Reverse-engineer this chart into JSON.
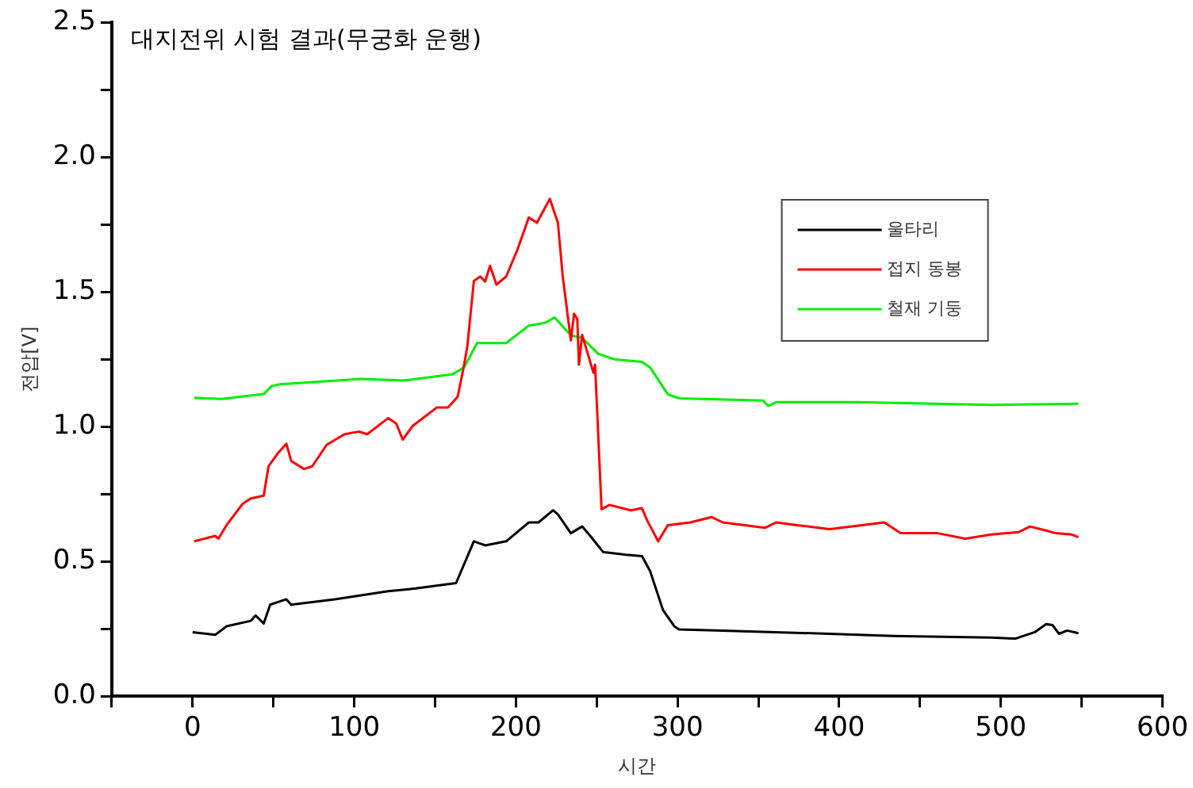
{
  "chart_data": {
    "type": "line",
    "title": "대지전위 시험 결과(무궁화 운행)",
    "xlabel": "시간",
    "ylabel": "전압[V]",
    "xlim": [
      -50,
      600
    ],
    "xticks": [
      {
        "value": -50,
        "label": null
      },
      0,
      {
        "value": 50,
        "label": null
      },
      100,
      {
        "value": 150,
        "label": null
      },
      200,
      {
        "value": 250,
        "label": null
      },
      300,
      {
        "value": 350,
        "label": null
      },
      400,
      {
        "value": 450,
        "label": null
      },
      500,
      {
        "value": 550,
        "label": null
      },
      600
    ],
    "ylim": [
      0,
      2.5
    ],
    "yticks": [
      "0.0",
      {
        "value": 0.25,
        "label": null
      },
      {
        "value": 0.5,
        "label": "0.5"
      },
      {
        "value": 0.75,
        "label": null
      },
      {
        "value": 1,
        "label": "1.0"
      },
      {
        "value": 1.25,
        "label": null
      },
      {
        "value": 1.5,
        "label": "1.5"
      },
      {
        "value": 1.75,
        "label": null
      },
      {
        "value": 2,
        "label": "2.0"
      },
      {
        "value": 2.25,
        "label": null
      },
      {
        "value": 2.5,
        "label": "2.5"
      }
    ],
    "grid": false,
    "legend": "top right",
    "marker": "none",
    "line_style": "solid",
    "series": [
      {
        "name": "울타리",
        "color": "#000000",
        "x": [
          0,
          14,
          21,
          36,
          39,
          44,
          48,
          58,
          61,
          88,
          121,
          138,
          163,
          174,
          181,
          194,
          208,
          214,
          223,
          226,
          234,
          241,
          246,
          254,
          268,
          278,
          283,
          291,
          298,
          301,
          328,
          394,
          434,
          494,
          509,
          521,
          528,
          532,
          536,
          541,
          548
        ],
        "values": [
          0.238,
          0.228,
          0.26,
          0.28,
          0.3,
          0.27,
          0.34,
          0.36,
          0.34,
          0.36,
          0.39,
          0.4,
          0.42,
          0.575,
          0.56,
          0.575,
          0.645,
          0.645,
          0.69,
          0.675,
          0.605,
          0.63,
          0.595,
          0.535,
          0.525,
          0.52,
          0.465,
          0.32,
          0.26,
          0.248,
          0.244,
          0.232,
          0.224,
          0.218,
          0.214,
          0.238,
          0.268,
          0.264,
          0.232,
          0.244,
          0.234
        ]
      },
      {
        "name": "접지 동봉",
        "color": "#ff0000",
        "x": [
          1,
          14,
          16,
          21,
          31,
          36,
          44,
          47,
          53,
          58,
          61,
          69,
          74,
          83,
          94,
          103,
          108,
          121,
          126,
          130,
          136,
          151,
          158,
          164,
          168,
          170,
          174,
          178,
          181,
          184,
          188,
          194,
          201,
          208,
          213,
          221,
          226,
          229,
          234,
          236,
          238,
          239,
          241,
          248,
          249,
          253,
          258,
          271,
          278,
          281,
          288,
          294,
          308,
          321,
          328,
          354,
          361,
          374,
          394,
          414,
          428,
          438,
          461,
          478,
          494,
          511,
          518,
          528,
          534,
          544,
          548
        ],
        "values": [
          0.575,
          0.595,
          0.585,
          0.635,
          0.714,
          0.734,
          0.744,
          0.853,
          0.903,
          0.937,
          0.873,
          0.843,
          0.853,
          0.933,
          0.972,
          0.982,
          0.972,
          1.032,
          1.012,
          0.952,
          1.002,
          1.071,
          1.071,
          1.111,
          1.23,
          1.3,
          1.54,
          1.557,
          1.538,
          1.597,
          1.527,
          1.557,
          1.657,
          1.776,
          1.756,
          1.845,
          1.756,
          1.557,
          1.32,
          1.419,
          1.4,
          1.23,
          1.34,
          1.2,
          1.23,
          0.694,
          0.71,
          0.69,
          0.698,
          0.655,
          0.575,
          0.635,
          0.645,
          0.665,
          0.645,
          0.625,
          0.645,
          0.635,
          0.62,
          0.635,
          0.645,
          0.605,
          0.605,
          0.585,
          0.6,
          0.609,
          0.63,
          0.615,
          0.605,
          0.6,
          0.59
        ]
      },
      {
        "name": "철재 기둥",
        "color": "#00ee00",
        "x": [
          1,
          18,
          44,
          49,
          54,
          104,
          131,
          161,
          168,
          176,
          194,
          208,
          218,
          224,
          234,
          241,
          251,
          261,
          278,
          283,
          294,
          301,
          353,
          356,
          361,
          411,
          494,
          548
        ],
        "values": [
          1.107,
          1.103,
          1.121,
          1.151,
          1.157,
          1.177,
          1.171,
          1.195,
          1.22,
          1.31,
          1.31,
          1.375,
          1.385,
          1.405,
          1.339,
          1.329,
          1.27,
          1.25,
          1.24,
          1.22,
          1.12,
          1.105,
          1.097,
          1.077,
          1.091,
          1.091,
          1.081,
          1.085
        ]
      }
    ]
  }
}
